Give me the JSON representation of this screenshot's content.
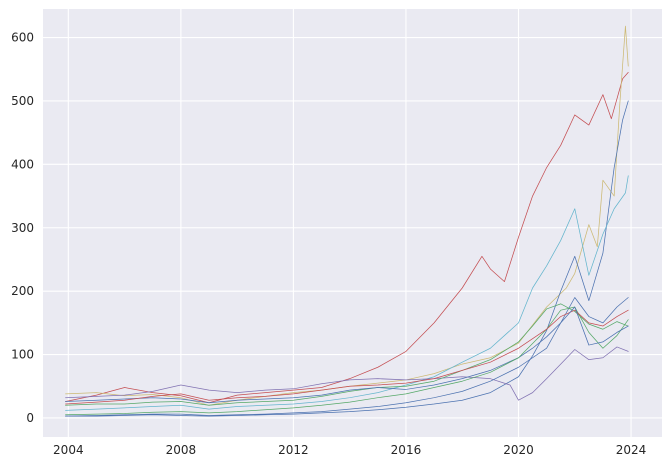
{
  "chart_data": {
    "type": "line",
    "title": "",
    "xlabel": "",
    "ylabel": "",
    "grid": true,
    "legend": "none",
    "xlim": [
      2003.1,
      2025.1
    ],
    "ylim": [
      -30,
      645
    ],
    "x_ticks": [
      2004,
      2008,
      2012,
      2016,
      2020,
      2024
    ],
    "x_tick_labels": [
      "2004",
      "2008",
      "2012",
      "2016",
      "2020",
      "2024"
    ],
    "y_ticks": [
      0,
      100,
      200,
      300,
      400,
      500,
      600
    ],
    "y_tick_labels": [
      "0",
      "100",
      "200",
      "300",
      "400",
      "500",
      "600"
    ],
    "background_color": "#EAEAF2",
    "series": [
      {
        "color": "#C44E52",
        "points": [
          [
            2003.9,
            26
          ],
          [
            2005,
            36
          ],
          [
            2006,
            48
          ],
          [
            2007,
            40
          ],
          [
            2008,
            35
          ],
          [
            2009,
            24
          ],
          [
            2010,
            36
          ],
          [
            2011,
            40
          ],
          [
            2012,
            44
          ],
          [
            2013,
            48
          ],
          [
            2014,
            62
          ],
          [
            2015,
            80
          ],
          [
            2016,
            105
          ],
          [
            2017,
            150
          ],
          [
            2018,
            205
          ],
          [
            2018.7,
            255
          ],
          [
            2019,
            235
          ],
          [
            2019.5,
            215
          ],
          [
            2020,
            285
          ],
          [
            2020.5,
            350
          ],
          [
            2021,
            395
          ],
          [
            2021.5,
            430
          ],
          [
            2022,
            478
          ],
          [
            2022.5,
            462
          ],
          [
            2023,
            510
          ],
          [
            2023.3,
            472
          ],
          [
            2023.7,
            535
          ],
          [
            2023.9,
            545
          ]
        ]
      },
      {
        "color": "#CCB974",
        "points": [
          [
            2003.9,
            38
          ],
          [
            2005,
            40
          ],
          [
            2006,
            35
          ],
          [
            2007,
            37
          ],
          [
            2008,
            32
          ],
          [
            2009,
            20
          ],
          [
            2010,
            28
          ],
          [
            2011,
            34
          ],
          [
            2012,
            40
          ],
          [
            2013,
            44
          ],
          [
            2014,
            50
          ],
          [
            2015,
            55
          ],
          [
            2016,
            60
          ],
          [
            2017,
            70
          ],
          [
            2018,
            85
          ],
          [
            2019,
            95
          ],
          [
            2020,
            118
          ],
          [
            2021,
            175
          ],
          [
            2021.7,
            205
          ],
          [
            2022,
            228
          ],
          [
            2022.5,
            305
          ],
          [
            2022.8,
            270
          ],
          [
            2023,
            375
          ],
          [
            2023.4,
            350
          ],
          [
            2023.6,
            495
          ],
          [
            2023.8,
            618
          ],
          [
            2023.9,
            555
          ]
        ]
      },
      {
        "color": "#4C72B0",
        "points": [
          [
            2003.9,
            3
          ],
          [
            2005,
            3
          ],
          [
            2006,
            4
          ],
          [
            2007,
            5
          ],
          [
            2008,
            4
          ],
          [
            2009,
            3
          ],
          [
            2010,
            4
          ],
          [
            2011,
            5
          ],
          [
            2012,
            6
          ],
          [
            2013,
            8
          ],
          [
            2014,
            10
          ],
          [
            2015,
            13
          ],
          [
            2016,
            17
          ],
          [
            2017,
            22
          ],
          [
            2018,
            28
          ],
          [
            2019,
            40
          ],
          [
            2020,
            65
          ],
          [
            2020.5,
            98
          ],
          [
            2021,
            138
          ],
          [
            2021.5,
            200
          ],
          [
            2022,
            255
          ],
          [
            2022.5,
            185
          ],
          [
            2023,
            260
          ],
          [
            2023.4,
            395
          ],
          [
            2023.7,
            470
          ],
          [
            2023.9,
            500
          ]
        ]
      },
      {
        "color": "#64B5CD",
        "points": [
          [
            2003.9,
            12
          ],
          [
            2005,
            14
          ],
          [
            2006,
            16
          ],
          [
            2007,
            18
          ],
          [
            2008,
            20
          ],
          [
            2009,
            14
          ],
          [
            2010,
            18
          ],
          [
            2011,
            20
          ],
          [
            2012,
            22
          ],
          [
            2013,
            26
          ],
          [
            2014,
            32
          ],
          [
            2015,
            40
          ],
          [
            2016,
            52
          ],
          [
            2017,
            65
          ],
          [
            2018,
            88
          ],
          [
            2019,
            110
          ],
          [
            2020,
            150
          ],
          [
            2020.5,
            205
          ],
          [
            2021,
            240
          ],
          [
            2021.5,
            280
          ],
          [
            2022,
            330
          ],
          [
            2022.5,
            225
          ],
          [
            2023,
            290
          ],
          [
            2023.4,
            330
          ],
          [
            2023.8,
            355
          ],
          [
            2023.9,
            382
          ]
        ]
      },
      {
        "color": "#8172B2",
        "points": [
          [
            2003.9,
            32
          ],
          [
            2005,
            34
          ],
          [
            2006,
            36
          ],
          [
            2007,
            42
          ],
          [
            2008,
            52
          ],
          [
            2009,
            44
          ],
          [
            2010,
            40
          ],
          [
            2011,
            44
          ],
          [
            2012,
            46
          ],
          [
            2013,
            54
          ],
          [
            2014,
            60
          ],
          [
            2015,
            62
          ],
          [
            2016,
            60
          ],
          [
            2017,
            62
          ],
          [
            2018,
            65
          ],
          [
            2019,
            62
          ],
          [
            2019.7,
            52
          ],
          [
            2020,
            28
          ],
          [
            2020.5,
            40
          ],
          [
            2021,
            62
          ],
          [
            2021.5,
            85
          ],
          [
            2022,
            108
          ],
          [
            2022.5,
            92
          ],
          [
            2023,
            95
          ],
          [
            2023.5,
            112
          ],
          [
            2023.9,
            105
          ]
        ]
      },
      {
        "color": "#55A868",
        "points": [
          [
            2003.9,
            20
          ],
          [
            2005,
            22
          ],
          [
            2006,
            22
          ],
          [
            2007,
            25
          ],
          [
            2008,
            26
          ],
          [
            2009,
            20
          ],
          [
            2010,
            24
          ],
          [
            2011,
            26
          ],
          [
            2012,
            28
          ],
          [
            2013,
            34
          ],
          [
            2014,
            42
          ],
          [
            2015,
            48
          ],
          [
            2016,
            50
          ],
          [
            2017,
            58
          ],
          [
            2018,
            75
          ],
          [
            2019,
            92
          ],
          [
            2020,
            120
          ],
          [
            2020.5,
            145
          ],
          [
            2021,
            172
          ],
          [
            2021.5,
            180
          ],
          [
            2022,
            168
          ],
          [
            2022.5,
            148
          ],
          [
            2023,
            140
          ],
          [
            2023.5,
            152
          ],
          [
            2023.9,
            145
          ]
        ]
      },
      {
        "color": "#4C72B0",
        "points": [
          [
            2003.9,
            26
          ],
          [
            2005,
            28
          ],
          [
            2006,
            30
          ],
          [
            2007,
            32
          ],
          [
            2008,
            30
          ],
          [
            2009,
            24
          ],
          [
            2010,
            28
          ],
          [
            2011,
            30
          ],
          [
            2012,
            32
          ],
          [
            2013,
            36
          ],
          [
            2014,
            44
          ],
          [
            2015,
            48
          ],
          [
            2016,
            45
          ],
          [
            2017,
            52
          ],
          [
            2018,
            62
          ],
          [
            2019,
            75
          ],
          [
            2020,
            95
          ],
          [
            2020.5,
            110
          ],
          [
            2021,
            128
          ],
          [
            2021.5,
            150
          ],
          [
            2022,
            190
          ],
          [
            2022.5,
            160
          ],
          [
            2023,
            150
          ],
          [
            2023.5,
            175
          ],
          [
            2023.9,
            190
          ]
        ]
      },
      {
        "color": "#55A868",
        "points": [
          [
            2003.9,
            5
          ],
          [
            2005,
            6
          ],
          [
            2006,
            7
          ],
          [
            2007,
            9
          ],
          [
            2008,
            10
          ],
          [
            2009,
            8
          ],
          [
            2010,
            10
          ],
          [
            2011,
            13
          ],
          [
            2012,
            16
          ],
          [
            2013,
            20
          ],
          [
            2014,
            25
          ],
          [
            2015,
            32
          ],
          [
            2016,
            38
          ],
          [
            2017,
            48
          ],
          [
            2018,
            58
          ],
          [
            2019,
            72
          ],
          [
            2020,
            95
          ],
          [
            2021,
            140
          ],
          [
            2021.5,
            170
          ],
          [
            2022,
            175
          ],
          [
            2022.5,
            135
          ],
          [
            2023,
            110
          ],
          [
            2023.5,
            130
          ],
          [
            2023.9,
            155
          ]
        ]
      },
      {
        "color": "#C44E52",
        "points": [
          [
            2003.9,
            22
          ],
          [
            2005,
            25
          ],
          [
            2006,
            28
          ],
          [
            2007,
            34
          ],
          [
            2008,
            38
          ],
          [
            2009,
            28
          ],
          [
            2010,
            32
          ],
          [
            2011,
            34
          ],
          [
            2012,
            38
          ],
          [
            2013,
            44
          ],
          [
            2014,
            50
          ],
          [
            2015,
            52
          ],
          [
            2016,
            55
          ],
          [
            2017,
            62
          ],
          [
            2018,
            75
          ],
          [
            2019,
            88
          ],
          [
            2020,
            110
          ],
          [
            2021,
            140
          ],
          [
            2021.5,
            160
          ],
          [
            2022,
            170
          ],
          [
            2022.5,
            150
          ],
          [
            2023,
            145
          ],
          [
            2023.5,
            160
          ],
          [
            2023.9,
            170
          ]
        ]
      },
      {
        "color": "#4C72B0",
        "points": [
          [
            2003.9,
            3
          ],
          [
            2005,
            4
          ],
          [
            2006,
            5
          ],
          [
            2007,
            6
          ],
          [
            2008,
            6
          ],
          [
            2009,
            4
          ],
          [
            2010,
            5
          ],
          [
            2011,
            6
          ],
          [
            2012,
            8
          ],
          [
            2013,
            10
          ],
          [
            2014,
            14
          ],
          [
            2015,
            18
          ],
          [
            2016,
            24
          ],
          [
            2017,
            32
          ],
          [
            2018,
            42
          ],
          [
            2019,
            58
          ],
          [
            2020,
            80
          ],
          [
            2021,
            110
          ],
          [
            2021.5,
            150
          ],
          [
            2022,
            175
          ],
          [
            2022.5,
            115
          ],
          [
            2023,
            120
          ],
          [
            2023.5,
            135
          ],
          [
            2023.9,
            145
          ]
        ]
      }
    ]
  }
}
